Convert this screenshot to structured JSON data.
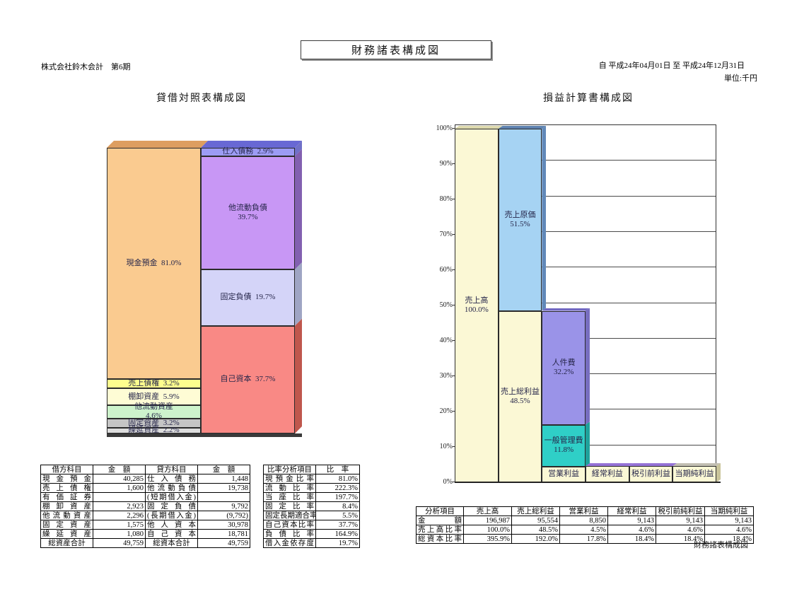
{
  "header": {
    "title": "財務諸表構成図",
    "company": "株式会社鈴木会計　第6期",
    "period": "自 平成24年04月01日 至 平成24年12月31日",
    "unit": "単位:千円"
  },
  "footer": {
    "label": "財務諸表構成図"
  },
  "chart_data": [
    {
      "type": "bar",
      "subtype": "100%-stacked-composition-3d",
      "title": "貸借対照表構成図",
      "ylim": [
        0,
        100
      ],
      "grid": false,
      "columns": [
        {
          "top_color": "#dd9e60",
          "segments": [
            {
              "label": "現金預金",
              "pct": 81.0,
              "color": "#facb90"
            },
            {
              "label": "売上債権",
              "pct": 3.2,
              "color": "#fdfd8e"
            },
            {
              "label": "棚卸資産",
              "pct": 5.9,
              "color": "#fefcd5"
            },
            {
              "label": "他流動資産",
              "pct": 4.6,
              "color": "#cdf3cc",
              "two_line": true
            },
            {
              "label": "固定資産",
              "pct": 3.2,
              "color": "#c5c5c5"
            },
            {
              "label": "繰延資産",
              "pct": 2.2,
              "color": "#dddddd"
            }
          ]
        },
        {
          "top_color": "#6868d4",
          "segments": [
            {
              "label": "仕入債務",
              "pct": 2.9,
              "color": "#9c9cf4",
              "side_color": "#7070c8"
            },
            {
              "label": "他流動負債",
              "pct": 39.7,
              "color": "#c897f5",
              "side_color": "#8260b0",
              "two_line": true
            },
            {
              "label": "固定負債",
              "pct": 19.7,
              "color": "#d4d4f8",
              "side_color": "#9fa5c4"
            },
            {
              "label": "自己資本",
              "pct": 37.7,
              "color": "#f98985",
              "side_color": "#bf574d"
            }
          ]
        }
      ]
    },
    {
      "type": "bar",
      "subtype": "stacked-step-3d",
      "title": "損益計算書構成図",
      "ylim": [
        0,
        100
      ],
      "grid": true,
      "y_ticks": [
        "0%",
        "10%",
        "20%",
        "30%",
        "40%",
        "50%",
        "60%",
        "70%",
        "80%",
        "90%",
        "100%"
      ],
      "columns": [
        {
          "top_color": "#dcd8ac",
          "segments": [
            {
              "label": "売上高",
              "pct": 100.0,
              "color": "#fbf8d5",
              "two_line": true
            }
          ]
        },
        {
          "top_color": "#5e82b0",
          "segments": [
            {
              "label": "売上原価",
              "pct": 51.5,
              "color": "#a6d3f3",
              "two_line": true,
              "side_color": "#6189b9"
            },
            {
              "label": "売上総利益",
              "pct": 48.5,
              "color": "#fbf8d5",
              "two_line": true
            }
          ]
        },
        {
          "top_color": "#7168c2",
          "segments": [
            {
              "label": "人件費",
              "pct": 32.2,
              "color": "#9a93e8",
              "two_line": true,
              "side_color": "#776ec0"
            },
            {
              "label": "一般管理費",
              "pct": 11.8,
              "color": "#2fcfc7",
              "two_line": true,
              "side_color": "#1fa29b"
            },
            {
              "label": "営業利益",
              "pct": 4.5,
              "color": "#fbf8d5",
              "show_pct": false
            }
          ]
        },
        {
          "top_color": "#9673d6",
          "segments": [
            {
              "label": "経常利益",
              "pct": 4.6,
              "color": "#fbf8d5",
              "show_pct": false
            }
          ]
        },
        {
          "top_color": "#9673d6",
          "segments": [
            {
              "label": "税引前利益",
              "pct": 4.6,
              "color": "#fbf8d5",
              "show_pct": false
            }
          ]
        },
        {
          "top_color": "#c2bfb2",
          "segments": [
            {
              "label": "当期純利益",
              "pct": 4.6,
              "color": "#fbf8d5",
              "show_pct": false,
              "side_color": "#c9c49a"
            }
          ]
        }
      ]
    }
  ],
  "tables": {
    "balance": {
      "headers": [
        "借方科目",
        "金　額",
        "貸方科目",
        "金　額"
      ],
      "rows": [
        [
          "現金預金",
          "40,285",
          "仕入債務",
          "1,448"
        ],
        [
          "売上債権",
          "1,600",
          "他流動負債",
          "19,738"
        ],
        [
          "有価証券",
          "",
          "(短期借入金)",
          ""
        ],
        [
          "棚卸資産",
          "2,923",
          "固定負債",
          "9,792"
        ],
        [
          "他流動資産",
          "2,296",
          "(長期借入金)",
          "(9,792)"
        ],
        [
          "固定資産",
          "1,575",
          "他人資本",
          "30,978"
        ],
        [
          "繰延資産",
          "1,080",
          "自己資本",
          "18,781"
        ]
      ],
      "total_row": [
        "総資産合計",
        "49,759",
        "総資本合計",
        "49,759"
      ]
    },
    "ratio": {
      "headers": [
        "比率分析項目",
        "比　率"
      ],
      "rows": [
        [
          "現預金比率",
          "81.0%"
        ],
        [
          "流動比率",
          "222.3%"
        ],
        [
          "当座比率",
          "197.7%"
        ],
        [
          "固定比率",
          "8.4%"
        ],
        [
          "固定長期適合率",
          "5.5%"
        ],
        [
          "自己資本比率",
          "37.7%"
        ],
        [
          "負債比率",
          "164.9%"
        ],
        [
          "借入金依存度",
          "19.7%"
        ]
      ]
    },
    "income": {
      "headers": [
        "分析項目",
        "売上高",
        "売上総利益",
        "営業利益",
        "経常利益",
        "税引前純利益",
        "当期純利益"
      ],
      "rows": [
        [
          "金　額",
          "196,987",
          "95,554",
          "8,850",
          "9,143",
          "9,143",
          "9,143"
        ],
        [
          "売上高比率",
          "100.0%",
          "48.5%",
          "4.5%",
          "4.6%",
          "4.6%",
          "4.6%"
        ],
        [
          "総資本比率",
          "395.9%",
          "192.0%",
          "17.8%",
          "18.4%",
          "18.4%",
          "18.4%"
        ]
      ]
    }
  }
}
